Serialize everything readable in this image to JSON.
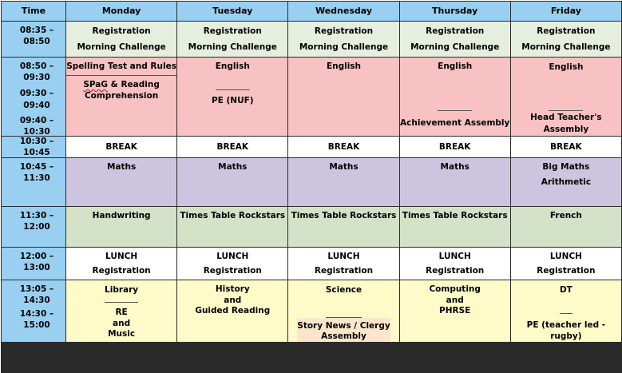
{
  "headers": [
    "Time",
    "Monday",
    "Tuesday",
    "Wednesday",
    "Thursday",
    "Friday"
  ],
  "times": {
    "t1": "08:35 – 08:50",
    "t2": "08:50 – 09:30",
    "t3": "09:30 – 09:40",
    "t4": "09:40 – 10:30",
    "t5": "10:30 – 10:45",
    "t6": "10:45 – 11:30",
    "t7": "11:30 – 12:00",
    "t8": "12:00 – 13:00",
    "t9": "13:05 – 14:30",
    "t10": "14:30 – 15:00"
  },
  "reg": {
    "line1": "Registration",
    "line2": "Morning Challenge"
  },
  "monday": {
    "spelling": "Spelling Test and Rules",
    "spag": "SPaG",
    "spag_rest": " & Reading",
    "comprehension": "Comprehension",
    "break": "BREAK",
    "maths": "Maths",
    "handwriting": "Handwriting",
    "lunch": "LUNCH",
    "registration": "Registration",
    "library": "Library",
    "re": "RE",
    "and": "and",
    "music": "Music"
  },
  "tuesday": {
    "english": "English",
    "pe": "PE (NUF)",
    "break": "BREAK",
    "maths": "Maths",
    "ttr": "Times Table Rockstars",
    "lunch": "LUNCH",
    "registration": "Registration",
    "history": "History",
    "and": "and",
    "guided": "Guided Reading"
  },
  "wednesday": {
    "english": "English",
    "break": "BREAK",
    "maths": "Maths",
    "ttr": "Times Table Rockstars",
    "lunch": "LUNCH",
    "registration": "Registration",
    "science": "Science",
    "story1": "Story News / Clergy",
    "story2": "Assembly"
  },
  "thursday": {
    "english": "English",
    "assembly": "Achievement Assembly",
    "break": "BREAK",
    "maths": "Maths",
    "ttr": "Times Table Rockstars",
    "lunch": "LUNCH",
    "registration": "Registration",
    "computing": "Computing",
    "and": "and",
    "phrse": "PHRSE"
  },
  "friday": {
    "english": "English",
    "assembly": "Head Teacher's Assembly",
    "break": "BREAK",
    "bigmaths": "Big Maths",
    "arithmetic": "Arithmetic",
    "french": "French",
    "lunch": "LUNCH",
    "registration": "Registration",
    "dt": "DT",
    "pe": "PE (teacher led - rugby)"
  }
}
